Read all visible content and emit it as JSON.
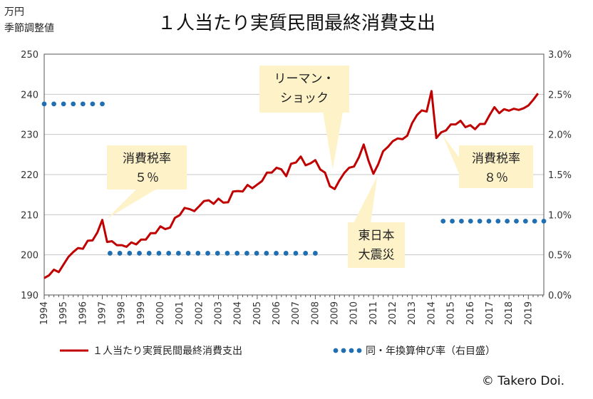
{
  "chart_data": {
    "type": "line",
    "title": "１人当たり実質民間最終消費支出",
    "y_unit": [
      "万円",
      "季節調整値"
    ],
    "ylim": [
      190,
      250
    ],
    "yticks": [
      "190",
      "200",
      "210",
      "220",
      "230",
      "240",
      "250"
    ],
    "y2lim": [
      0,
      3
    ],
    "y2ticks": [
      "0.0%",
      "0.5%",
      "1.0%",
      "1.5%",
      "2.0%",
      "2.5%",
      "3.0%"
    ],
    "xlim": [
      1994,
      2019.8
    ],
    "xticks": [
      "1994",
      "1995",
      "1996",
      "1997",
      "1998",
      "1999",
      "2000",
      "2001",
      "2002",
      "2003",
      "2004",
      "2005",
      "2006",
      "2007",
      "2008",
      "2009",
      "2010",
      "2011",
      "2012",
      "2013",
      "2014",
      "2015",
      "2016",
      "2017",
      "2018",
      "2019"
    ],
    "grid": true,
    "legend_position": "bottom",
    "series": [
      {
        "name": "１人当たり実質民間最終消費支出",
        "color": "#c00000",
        "axis": "left",
        "x": [
          1994.0,
          1994.25,
          1994.5,
          1994.75,
          1995.0,
          1995.25,
          1995.5,
          1995.75,
          1996.0,
          1996.25,
          1996.5,
          1996.75,
          1997.0,
          1997.25,
          1997.5,
          1997.75,
          1998.0,
          1998.25,
          1998.5,
          1998.75,
          1999.0,
          1999.25,
          1999.5,
          1999.75,
          2000.0,
          2000.25,
          2000.5,
          2000.75,
          2001.0,
          2001.25,
          2001.5,
          2001.75,
          2002.0,
          2002.25,
          2002.5,
          2002.75,
          2003.0,
          2003.25,
          2003.5,
          2003.75,
          2004.0,
          2004.25,
          2004.5,
          2004.75,
          2005.0,
          2005.25,
          2005.5,
          2005.75,
          2006.0,
          2006.25,
          2006.5,
          2006.75,
          2007.0,
          2007.25,
          2007.5,
          2007.75,
          2008.0,
          2008.25,
          2008.5,
          2008.75,
          2009.0,
          2009.25,
          2009.5,
          2009.75,
          2010.0,
          2010.25,
          2010.5,
          2010.75,
          2011.0,
          2011.25,
          2011.5,
          2011.75,
          2012.0,
          2012.25,
          2012.5,
          2012.75,
          2013.0,
          2013.25,
          2013.5,
          2013.75,
          2014.0,
          2014.25,
          2014.5,
          2014.75,
          2015.0,
          2015.25,
          2015.5,
          2015.75,
          2016.0,
          2016.25,
          2016.5,
          2016.75,
          2017.0,
          2017.25,
          2017.5,
          2017.75,
          2018.0,
          2018.25,
          2018.5,
          2018.75,
          2019.0,
          2019.25,
          2019.5
        ],
        "values": [
          194.2,
          194.9,
          196.3,
          195.7,
          197.6,
          199.5,
          200.7,
          201.7,
          201.5,
          203.5,
          203.6,
          205.6,
          208.7,
          203.2,
          203.4,
          202.4,
          202.4,
          202.0,
          203.1,
          202.6,
          203.8,
          203.8,
          205.4,
          205.4,
          207.1,
          206.4,
          206.8,
          209.2,
          209.9,
          211.7,
          211.4,
          210.9,
          212.1,
          213.4,
          213.6,
          212.7,
          214.0,
          213.0,
          213.1,
          215.8,
          215.9,
          215.8,
          217.4,
          216.6,
          217.5,
          218.4,
          220.5,
          220.5,
          221.7,
          221.3,
          219.6,
          222.7,
          223.0,
          224.5,
          222.3,
          222.8,
          223.6,
          221.3,
          220.5,
          217.1,
          216.4,
          218.6,
          220.4,
          221.7,
          222.0,
          224.3,
          227.5,
          223.4,
          220.2,
          222.6,
          225.8,
          226.9,
          228.3,
          229.0,
          228.8,
          229.7,
          232.8,
          234.8,
          236.0,
          235.7,
          240.8,
          229.1,
          230.5,
          231.0,
          232.5,
          232.5,
          233.4,
          231.8,
          232.3,
          231.3,
          232.6,
          232.6,
          234.8,
          236.8,
          235.3,
          236.3,
          235.9,
          236.4,
          236.1,
          236.5,
          237.2,
          238.6,
          240.2
        ]
      },
      {
        "name": "同・年換算伸び率（右目盛）",
        "color": "#1f6fb2",
        "axis": "right",
        "segments": [
          {
            "x_from": 1994.0,
            "x_to": 1997.0,
            "value": 2.38
          },
          {
            "x_from": 1997.4,
            "x_to": 2008.0,
            "value": 0.52
          },
          {
            "x_from": 2014.6,
            "x_to": 2019.8,
            "value": 0.92
          }
        ]
      }
    ],
    "annotations": [
      {
        "lines": [
          "消費税率",
          "５％"
        ],
        "x": 1997.25,
        "y": 208.7
      },
      {
        "lines": [
          "リーマン・",
          "ショック"
        ],
        "x": 2008.9,
        "y": 221.0
      },
      {
        "lines": [
          "東日本",
          "大震災"
        ],
        "x": 2011.2,
        "y": 220.3
      },
      {
        "lines": [
          "消費税率",
          "８％"
        ],
        "x": 2014.5,
        "y": 229.1
      }
    ],
    "copyright": "© Takero Doi."
  }
}
